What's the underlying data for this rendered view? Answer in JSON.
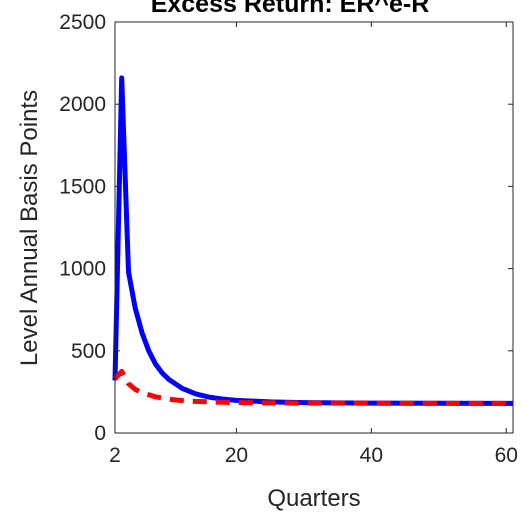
{
  "chart_data": {
    "type": "line",
    "title": "Excess Return: ER^e-R",
    "xlabel": "Quarters",
    "ylabel": "Level Annual Basis Points",
    "xlim": [
      2,
      61
    ],
    "ylim": [
      0,
      2500
    ],
    "xticks": [
      2,
      20,
      40,
      60
    ],
    "yticks": [
      0,
      500,
      1000,
      1500,
      2000,
      2500
    ],
    "grid": false,
    "legend": "none",
    "series": [
      {
        "color": "#0000ff",
        "style": "solid",
        "x": [
          2,
          3,
          4,
          5,
          6,
          7,
          8,
          9,
          10,
          12,
          14,
          16,
          18,
          20,
          25,
          30,
          35,
          40,
          50,
          61
        ],
        "y": [
          320,
          2160,
          980,
          760,
          610,
          500,
          420,
          365,
          325,
          270,
          238,
          218,
          206,
          198,
          189,
          185,
          183,
          182,
          181,
          180
        ]
      },
      {
        "color": "#ff0000",
        "style": "dashed",
        "x": [
          2,
          3,
          4,
          5,
          6,
          8,
          10,
          12,
          14,
          16,
          18,
          20,
          25,
          30,
          40,
          50,
          61
        ],
        "y": [
          330,
          375,
          300,
          265,
          245,
          220,
          205,
          197,
          192,
          189,
          187,
          185,
          183,
          182,
          181,
          180,
          180
        ]
      }
    ]
  }
}
